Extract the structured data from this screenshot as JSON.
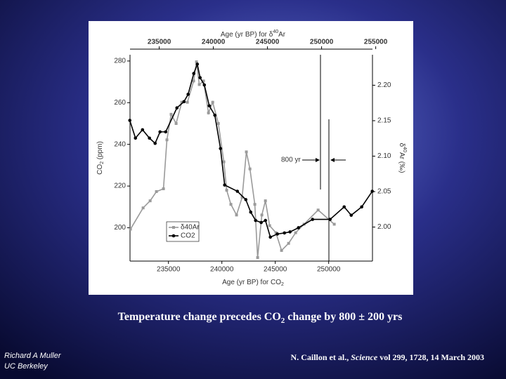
{
  "chart_data": {
    "type": "line",
    "x_top_label": [
      "Age (yr BP) for δ",
      "40",
      "Ar"
    ],
    "x_label": [
      "Age (yr BP) for CO",
      "2"
    ],
    "y_label": [
      "CO",
      "2",
      " (ppm)"
    ],
    "y2_label": [
      "δ",
      "40",
      "Ar (‰)"
    ],
    "xlim": [
      231400,
      254100
    ],
    "xticks": [
      235000,
      240000,
      245000,
      250000
    ],
    "x2lim": [
      232300,
      254700
    ],
    "x2ticks": [
      235000,
      240000,
      245000,
      250000,
      255000
    ],
    "ylim": [
      184,
      283
    ],
    "yticks": [
      200,
      220,
      240,
      260,
      280
    ],
    "y2lim": [
      1.952,
      2.243
    ],
    "y2ticks": [
      {
        "value": 2.0,
        "label": "2.00"
      },
      2.05,
      {
        "value": 2.1,
        "label": "2.10"
      },
      2.15,
      {
        "value": 2.2,
        "label": "2.20"
      }
    ],
    "annotation": "800 yr",
    "legend": "lower left",
    "series": [
      {
        "name": "δ40Ar",
        "color": "#9a9a9a",
        "marker": "square",
        "axis": "y2",
        "x_axis": "x2",
        "x": [
          232340,
          233510,
          234160,
          234740,
          235390,
          235710,
          236100,
          236560,
          237080,
          237600,
          238180,
          238440,
          238700,
          239090,
          239550,
          239940,
          240460,
          240970,
          241230,
          241620,
          242140,
          242660,
          243050,
          243380,
          243830,
          244090,
          244480,
          244810,
          245200,
          245780,
          246300,
          246950,
          247600,
          248380,
          249680,
          251170
        ],
        "values": [
          1.997,
          2.027,
          2.037,
          2.05,
          2.054,
          2.123,
          2.159,
          2.146,
          2.176,
          2.176,
          2.206,
          2.233,
          2.201,
          2.206,
          2.161,
          2.176,
          2.146,
          2.092,
          2.052,
          2.032,
          2.017,
          2.042,
          2.106,
          2.082,
          2.032,
          1.957,
          2.017,
          2.037,
          2.002,
          1.992,
          1.967,
          1.977,
          1.992,
          2.004,
          2.024,
          2.004
        ]
      },
      {
        "name": "CO2",
        "color": "#000000",
        "marker": "circle",
        "x": [
          231380,
          231910,
          232570,
          233220,
          233750,
          234210,
          234740,
          235790,
          236450,
          236840,
          237370,
          237700,
          237960,
          238360,
          238820,
          239340,
          239870,
          240260,
          241450,
          242240,
          242700,
          243160,
          243680,
          244080,
          244540,
          245200,
          245860,
          246380,
          247170,
          248490,
          250130,
          251450,
          252110,
          253090,
          254080
        ],
        "values": [
          251.5,
          243,
          247,
          243,
          240.5,
          246,
          246,
          257.5,
          260.5,
          264,
          274,
          278.5,
          272,
          268.5,
          258.5,
          254,
          238,
          220.5,
          217.5,
          213.5,
          207.5,
          203.5,
          202.5,
          203.5,
          195.5,
          197,
          197.5,
          198,
          200,
          204,
          204,
          210,
          206,
          210,
          217.5
        ]
      }
    ]
  },
  "slide": {
    "caption": [
      "Temperature change precedes CO",
      "2",
      " change by 800 ± 200 yrs"
    ],
    "author": [
      "Richard A Muller",
      "UC Berkeley"
    ],
    "citation": [
      "N. Caillon et al., ",
      "Science",
      " vol 299, 1728, 14 March 2003"
    ]
  }
}
